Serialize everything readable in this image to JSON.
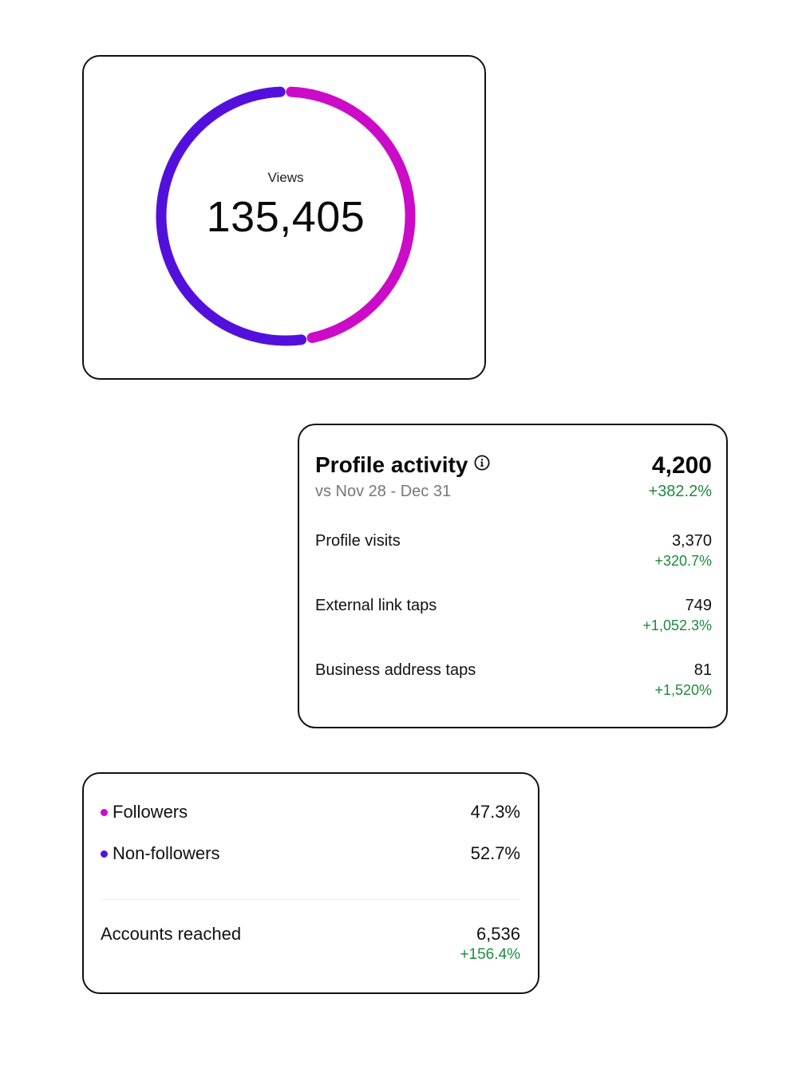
{
  "colors": {
    "followers": "#cc0bc9",
    "non_followers": "#5310dd",
    "positive_change": "#1e8a3e"
  },
  "views": {
    "label": "Views",
    "value": "135,405"
  },
  "chart_data": {
    "type": "pie",
    "categories": [
      "Followers",
      "Non-followers"
    ],
    "values": [
      47.3,
      52.7
    ],
    "colors": [
      "#cc0bc9",
      "#5310dd"
    ],
    "title": ""
  },
  "profile_activity": {
    "title": "Profile activity",
    "info_icon": "info-icon",
    "subtitle": "vs Nov 28 - Dec 31",
    "total": "4,200",
    "total_change": "+382.2%",
    "rows": [
      {
        "label": "Profile visits",
        "value": "3,370",
        "change": "+320.7%"
      },
      {
        "label": "External link taps",
        "value": "749",
        "change": "+1,052.3%"
      },
      {
        "label": "Business address taps",
        "value": "81",
        "change": "+1,520%"
      }
    ]
  },
  "reach": {
    "legend": [
      {
        "label": "Followers",
        "value": "47.3%"
      },
      {
        "label": "Non-followers",
        "value": "52.7%"
      }
    ],
    "accounts_reached": {
      "label": "Accounts reached",
      "value": "6,536",
      "change": "+156.4%"
    }
  }
}
